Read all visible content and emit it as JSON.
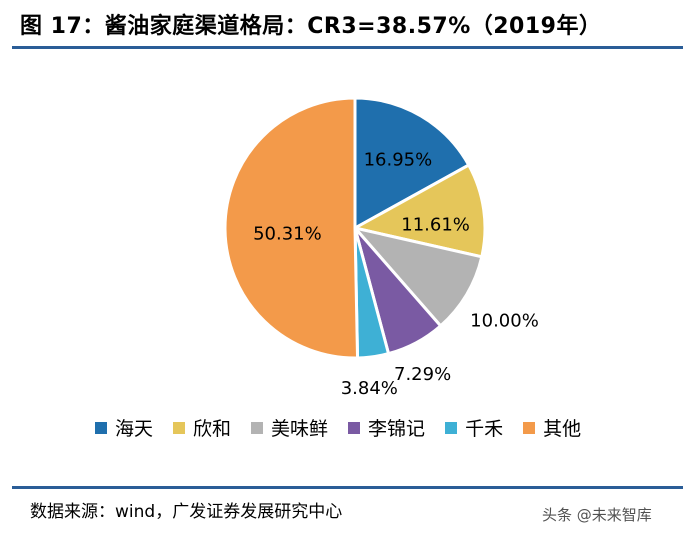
{
  "title": "图 17：酱油家庭渠道格局：CR3=38.57%（2019年）",
  "source": "数据来源：wind，广发证券发展研究中心",
  "watermark": "头条 @未来智库",
  "colors": {
    "rule": "#2a5d97"
  },
  "chart_data": {
    "type": "pie",
    "categories": [
      "海天",
      "欣和",
      "美味鲜",
      "李锦记",
      "千禾",
      "其他"
    ],
    "values": [
      16.95,
      11.61,
      10.0,
      7.29,
      3.84,
      50.31
    ],
    "labels": [
      "16.95%",
      "11.61%",
      "10.00%",
      "7.29%",
      "3.84%",
      "50.31%"
    ],
    "colors": [
      "#1f6fad",
      "#e5c65a",
      "#b3b3b3",
      "#7a5aa3",
      "#3eb0d5",
      "#f39a4a"
    ],
    "start_angle_deg": 0,
    "direction": "clockwise",
    "legend_position": "bottom"
  }
}
